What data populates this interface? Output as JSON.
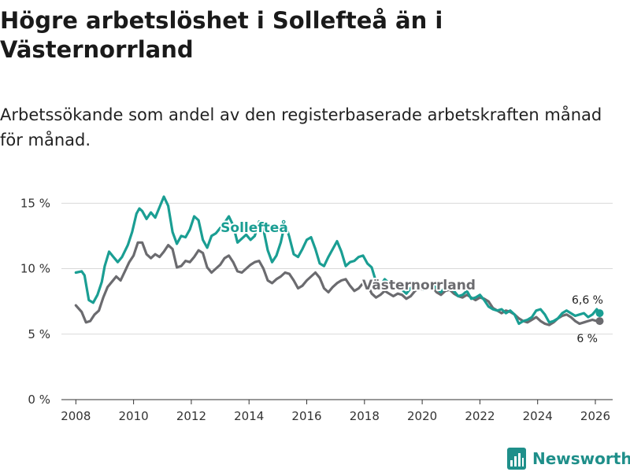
{
  "chart_data": {
    "type": "line",
    "title": "Högre arbetslöshet i Sollefteå än i Västernorrland",
    "subtitle": "Arbetssökande som andel av den registerbaserade arbetskraften månad för månad.",
    "xlabel": "",
    "ylabel": "",
    "xlim": [
      2007.5,
      2026.6
    ],
    "ylim": [
      0,
      15.5
    ],
    "grid": true,
    "x_ticks": [
      {
        "value": 2008,
        "label": "2008"
      },
      {
        "value": 2010,
        "label": "2010"
      },
      {
        "value": 2012,
        "label": "2012"
      },
      {
        "value": 2014,
        "label": "2014"
      },
      {
        "value": 2016,
        "label": "2016"
      },
      {
        "value": 2018,
        "label": "2018"
      },
      {
        "value": 2020,
        "label": "2020"
      },
      {
        "value": 2022,
        "label": "2022"
      },
      {
        "value": 2024,
        "label": "2024"
      },
      {
        "value": 2026,
        "label": "2026"
      }
    ],
    "y_ticks": [
      {
        "value": 0,
        "label": "0 %"
      },
      {
        "value": 5,
        "label": "5 %"
      },
      {
        "value": 10,
        "label": "10 %"
      },
      {
        "value": 15,
        "label": "15 %"
      }
    ],
    "series": [
      {
        "name": "Sollefteå",
        "color": "#1a9e93",
        "end_label": "6,6 %",
        "x": [
          2008.0,
          2008.2,
          2008.3,
          2008.45,
          2008.6,
          2008.75,
          2008.9,
          2009.0,
          2009.15,
          2009.3,
          2009.45,
          2009.6,
          2009.8,
          2009.95,
          2010.1,
          2010.2,
          2010.3,
          2010.45,
          2010.6,
          2010.75,
          2010.9,
          2011.05,
          2011.2,
          2011.35,
          2011.5,
          2011.65,
          2011.8,
          2011.95,
          2012.1,
          2012.25,
          2012.4,
          2012.55,
          2012.7,
          2012.85,
          2013.0,
          2013.15,
          2013.3,
          2013.45,
          2013.6,
          2013.75,
          2013.9,
          2014.05,
          2014.2,
          2014.35,
          2014.5,
          2014.65,
          2014.8,
          2014.95,
          2015.1,
          2015.25,
          2015.4,
          2015.55,
          2015.7,
          2015.85,
          2016.0,
          2016.15,
          2016.3,
          2016.45,
          2016.6,
          2016.75,
          2016.9,
          2017.05,
          2017.2,
          2017.35,
          2017.5,
          2017.65,
          2017.8,
          2017.95,
          2018.1,
          2018.25,
          2018.4,
          2018.55,
          2018.7,
          2018.85,
          2019.0,
          2019.15,
          2019.3,
          2019.45,
          2019.6,
          2019.75,
          2019.9,
          2020.05,
          2020.2,
          2020.35,
          2020.5,
          2020.65,
          2020.8,
          2020.95,
          2021.1,
          2021.25,
          2021.4,
          2021.55,
          2021.7,
          2021.85,
          2022.0,
          2022.15,
          2022.3,
          2022.45,
          2022.6,
          2022.75,
          2022.9,
          2023.05,
          2023.2,
          2023.35,
          2023.5,
          2023.65,
          2023.8,
          2023.95,
          2024.1,
          2024.25,
          2024.4,
          2024.55,
          2024.7,
          2024.85,
          2025.0,
          2025.15,
          2025.3,
          2025.45,
          2025.6,
          2025.75,
          2025.9,
          2026.05,
          2026.15
        ],
        "values": [
          9.7,
          9.8,
          9.5,
          7.6,
          7.4,
          8.0,
          9.0,
          10.2,
          11.3,
          10.9,
          10.5,
          10.9,
          11.8,
          12.8,
          14.2,
          14.6,
          14.4,
          13.8,
          14.3,
          13.9,
          14.7,
          15.5,
          14.8,
          12.8,
          11.9,
          12.5,
          12.4,
          13.0,
          14.0,
          13.7,
          12.2,
          11.6,
          12.5,
          12.7,
          13.1,
          13.5,
          14.0,
          13.3,
          12.0,
          12.3,
          12.6,
          12.2,
          12.5,
          13.6,
          13.0,
          11.4,
          10.5,
          11.0,
          12.0,
          13.5,
          12.4,
          11.1,
          10.9,
          11.5,
          12.2,
          12.4,
          11.5,
          10.4,
          10.2,
          10.9,
          11.5,
          12.1,
          11.3,
          10.2,
          10.5,
          10.6,
          10.9,
          11.0,
          10.4,
          10.1,
          9.0,
          8.7,
          9.2,
          8.9,
          8.5,
          8.7,
          8.4,
          8.1,
          8.5,
          9.0,
          8.8,
          8.4,
          8.6,
          8.8,
          8.5,
          8.2,
          8.6,
          8.7,
          8.3,
          7.9,
          8.0,
          8.3,
          7.7,
          7.8,
          8.0,
          7.6,
          7.1,
          6.9,
          6.8,
          6.9,
          6.6,
          6.8,
          6.5,
          5.8,
          6.0,
          6.1,
          6.3,
          6.8,
          6.9,
          6.5,
          5.9,
          6.0,
          6.2,
          6.6,
          6.8,
          6.6,
          6.4,
          6.5,
          6.6,
          6.3,
          6.5,
          6.9,
          6.6
        ]
      },
      {
        "name": "Västernorrland",
        "color": "#6b6b6f",
        "end_label": "6 %",
        "x": [
          2008.0,
          2008.2,
          2008.35,
          2008.5,
          2008.65,
          2008.8,
          2008.95,
          2009.1,
          2009.25,
          2009.4,
          2009.55,
          2009.7,
          2009.85,
          2010.0,
          2010.15,
          2010.3,
          2010.45,
          2010.6,
          2010.75,
          2010.9,
          2011.05,
          2011.2,
          2011.35,
          2011.5,
          2011.65,
          2011.8,
          2011.95,
          2012.1,
          2012.25,
          2012.4,
          2012.55,
          2012.7,
          2012.85,
          2013.0,
          2013.15,
          2013.3,
          2013.45,
          2013.6,
          2013.75,
          2013.9,
          2014.05,
          2014.2,
          2014.35,
          2014.5,
          2014.65,
          2014.8,
          2014.95,
          2015.1,
          2015.25,
          2015.4,
          2015.55,
          2015.7,
          2015.85,
          2016.0,
          2016.15,
          2016.3,
          2016.45,
          2016.6,
          2016.75,
          2016.9,
          2017.05,
          2017.2,
          2017.35,
          2017.5,
          2017.65,
          2017.8,
          2017.95,
          2018.1,
          2018.25,
          2018.4,
          2018.55,
          2018.7,
          2018.85,
          2019.0,
          2019.15,
          2019.3,
          2019.45,
          2019.6,
          2019.75,
          2019.9,
          2020.05,
          2020.2,
          2020.35,
          2020.5,
          2020.65,
          2020.8,
          2020.95,
          2021.1,
          2021.25,
          2021.4,
          2021.55,
          2021.7,
          2021.85,
          2022.0,
          2022.15,
          2022.3,
          2022.45,
          2022.6,
          2022.75,
          2022.9,
          2023.05,
          2023.2,
          2023.35,
          2023.5,
          2023.65,
          2023.8,
          2023.95,
          2024.1,
          2024.25,
          2024.4,
          2024.55,
          2024.7,
          2024.85,
          2025.0,
          2025.15,
          2025.3,
          2025.45,
          2025.6,
          2025.75,
          2025.9,
          2026.05,
          2026.15
        ],
        "values": [
          7.2,
          6.7,
          5.9,
          6.0,
          6.5,
          6.8,
          7.8,
          8.6,
          9.0,
          9.4,
          9.1,
          9.8,
          10.5,
          11.0,
          12.0,
          12.0,
          11.1,
          10.8,
          11.1,
          10.9,
          11.3,
          11.8,
          11.5,
          10.1,
          10.2,
          10.6,
          10.5,
          10.9,
          11.4,
          11.2,
          10.1,
          9.7,
          10.0,
          10.3,
          10.8,
          11.0,
          10.5,
          9.8,
          9.7,
          10.0,
          10.3,
          10.5,
          10.6,
          10.0,
          9.1,
          8.9,
          9.2,
          9.4,
          9.7,
          9.6,
          9.1,
          8.5,
          8.7,
          9.1,
          9.4,
          9.7,
          9.3,
          8.5,
          8.2,
          8.6,
          8.9,
          9.1,
          9.2,
          8.7,
          8.3,
          8.5,
          8.9,
          8.8,
          8.1,
          7.8,
          8.0,
          8.3,
          8.1,
          7.9,
          8.1,
          8.0,
          7.7,
          7.9,
          8.3,
          8.5,
          8.4,
          8.5,
          8.6,
          8.2,
          8.0,
          8.3,
          8.4,
          8.1,
          7.9,
          7.8,
          8.0,
          7.8,
          7.6,
          7.8,
          7.7,
          7.5,
          7.0,
          6.8,
          6.6,
          6.8,
          6.7,
          6.5,
          6.2,
          6.0,
          5.9,
          6.1,
          6.3,
          6.0,
          5.8,
          5.7,
          5.9,
          6.2,
          6.4,
          6.5,
          6.3,
          6.0,
          5.8,
          5.9,
          6.0,
          6.1,
          6.0,
          6.0
        ]
      }
    ]
  },
  "branding": {
    "name": "Newsworthy",
    "color": "#1f8f8a"
  }
}
